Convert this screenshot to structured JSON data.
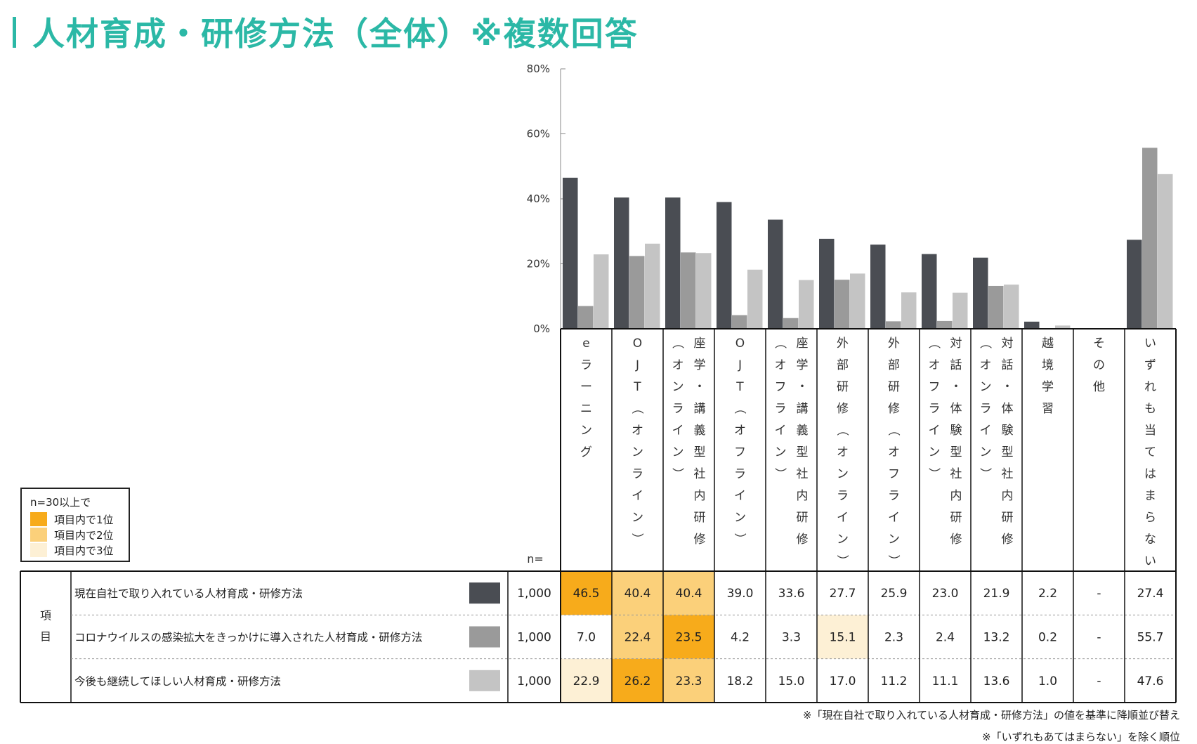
{
  "title": "人材育成・研修方法（全体）※複数回答",
  "colors": {
    "title": "#2bb8a6",
    "series1": "#4a4d53",
    "series2": "#9a9a9a",
    "series3": "#c4c4c4",
    "rank1": "#f7ab1b",
    "rank2": "#fbd07a",
    "rank3": "#fdf0d5"
  },
  "legend": {
    "title": "n=30以上で",
    "items": [
      "項目内で1位",
      "項目内で2位",
      "項目内で3位"
    ]
  },
  "table": {
    "n_label": "n=",
    "row_header": "項目",
    "n_values": [
      "1,000",
      "1,000",
      "1,000"
    ],
    "cells": [
      [
        "46.5",
        "40.4",
        "40.4",
        "39.0",
        "33.6",
        "27.7",
        "25.9",
        "23.0",
        "21.9",
        "2.2",
        "-",
        "27.4"
      ],
      [
        "7.0",
        "22.4",
        "23.5",
        "4.2",
        "3.3",
        "15.1",
        "2.3",
        "2.4",
        "13.2",
        "0.2",
        "-",
        "55.7"
      ],
      [
        "22.9",
        "26.2",
        "23.3",
        "18.2",
        "15.0",
        "17.0",
        "11.2",
        "11.1",
        "13.6",
        "1.0",
        "-",
        "47.6"
      ]
    ],
    "ranks": [
      [
        1,
        2,
        2,
        0,
        0,
        0,
        0,
        0,
        0,
        0,
        0,
        0
      ],
      [
        0,
        2,
        1,
        0,
        0,
        3,
        0,
        0,
        0,
        0,
        0,
        0
      ],
      [
        3,
        1,
        2,
        0,
        0,
        0,
        0,
        0,
        0,
        0,
        0,
        0
      ]
    ]
  },
  "notes": [
    "※「現在自社で取り入れている人材育成・研修方法」の値を基準に降順並び替え",
    "※「いずれもあてはまらない」を除く順位"
  ],
  "chart_data": {
    "type": "bar",
    "title": "人材育成・研修方法（全体）※複数回答",
    "ylim": [
      0,
      80
    ],
    "yticks": [
      "0%",
      "20%",
      "40%",
      "60%",
      "80%"
    ],
    "categories": [
      "eラーニング",
      "OJT（オンライン）",
      "座学・講義型社内研修（オンライン）",
      "OJT（オフライン）",
      "座学・講義型社内研修（オフライン）",
      "外部研修（オンライン）",
      "外部研修（オフライン）",
      "対話・体験型社内研修（オフライン）",
      "対話・体験型社内研修（オンライン）",
      "越境学習",
      "その他",
      "いずれも当てはまらない"
    ],
    "category_label_columns": [
      [
        "eラーニング"
      ],
      [
        "OJT（オンライン）"
      ],
      [
        "（オンライン）",
        "座学・講義型社内研修"
      ],
      [
        "OJT（オフライン）"
      ],
      [
        "（オフライン）",
        "座学・講義型社内研修"
      ],
      [
        "外部研修（オンライン）"
      ],
      [
        "外部研修（オフライン）"
      ],
      [
        "（オフライン）",
        "対話・体験型社内研修"
      ],
      [
        "（オンライン）",
        "対話・体験型社内研修"
      ],
      [
        "越境学習"
      ],
      [
        "その他"
      ],
      [
        "いずれも当てはまらない"
      ]
    ],
    "series": [
      {
        "name": "現在自社で取り入れている人材育成・研修方法",
        "values": [
          46.5,
          40.4,
          40.4,
          39.0,
          33.6,
          27.7,
          25.9,
          23.0,
          21.9,
          2.2,
          0,
          27.4
        ]
      },
      {
        "name": "コロナウイルスの感染拡大をきっかけに導入された人材育成・研修方法",
        "values": [
          7.0,
          22.4,
          23.5,
          4.2,
          3.3,
          15.1,
          2.3,
          2.4,
          13.2,
          0.2,
          0,
          55.7
        ]
      },
      {
        "name": "今後も継続してほしい人材育成・研修方法",
        "values": [
          22.9,
          26.2,
          23.3,
          18.2,
          15.0,
          17.0,
          11.2,
          11.1,
          13.6,
          1.0,
          0,
          47.6
        ]
      }
    ]
  }
}
